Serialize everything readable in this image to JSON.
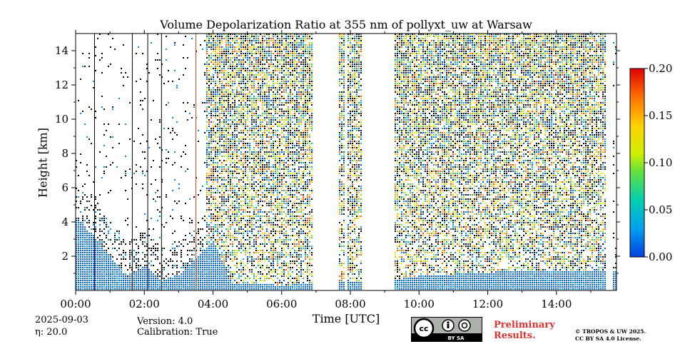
{
  "chart_data": {
    "type": "heatmap",
    "title": "Volume Depolarization Ratio at 355 nm of pollyxt_uw at Warsaw",
    "xlabel": "Time [UTC]",
    "ylabel": "Height [km]",
    "xlim_hours": [
      0,
      15.75
    ],
    "ylim_km": [
      0,
      15
    ],
    "x_ticks": [
      0,
      2,
      4,
      6,
      8,
      10,
      12,
      14
    ],
    "x_tick_labels": [
      "00:00",
      "02:00",
      "04:00",
      "06:00",
      "08:00",
      "10:00",
      "12:00",
      "14:00"
    ],
    "y_ticks": [
      2,
      4,
      6,
      8,
      10,
      12,
      14
    ],
    "y_tick_labels": [
      "2",
      "4",
      "6",
      "8",
      "10",
      "12",
      "14"
    ],
    "colorbar": {
      "min": 0.0,
      "max": 0.2,
      "ticks": [
        0.0,
        0.05,
        0.1,
        0.15,
        0.2
      ],
      "tick_labels": [
        "0.00",
        "0.05",
        "0.10",
        "0.15",
        "0.20"
      ],
      "colormap": [
        "#0050e0",
        "#00b0f0",
        "#00d090",
        "#80e020",
        "#f0f000",
        "#ffb000",
        "#ff5000",
        "#e00000"
      ]
    },
    "no_data_periods_hours": [
      [
        6.9,
        7.65
      ],
      [
        7.8,
        7.9
      ],
      [
        8.3,
        9.28
      ],
      [
        15.45,
        15.6
      ]
    ],
    "noisy_periods_hours": [
      [
        3.8,
        15.45
      ]
    ],
    "boundary_layer_km": [
      {
        "t": 0.0,
        "h": 4.3
      },
      {
        "t": 0.5,
        "h": 3.2
      },
      {
        "t": 1.0,
        "h": 2.0
      },
      {
        "t": 1.5,
        "h": 0.8
      },
      {
        "t": 2.0,
        "h": 1.5
      },
      {
        "t": 2.5,
        "h": 0.6
      },
      {
        "t": 3.0,
        "h": 1.0
      },
      {
        "t": 3.5,
        "h": 2.0
      },
      {
        "t": 4.0,
        "h": 3.0
      },
      {
        "t": 4.5,
        "h": 0.5
      },
      {
        "t": 6.0,
        "h": 0.35
      },
      {
        "t": 9.3,
        "h": 0.7
      },
      {
        "t": 10.0,
        "h": 0.9
      },
      {
        "t": 11.0,
        "h": 1.0
      },
      {
        "t": 12.0,
        "h": 1.1
      },
      {
        "t": 13.0,
        "h": 1.2
      },
      {
        "t": 14.0,
        "h": 1.2
      },
      {
        "t": 15.45,
        "h": 1.2
      }
    ],
    "annotations": {
      "date": "2025-09-03",
      "eta": "η: 20.0",
      "version": "Version: 4.0",
      "calibration": "Calibration: True",
      "preliminary": [
        "Preliminary",
        "Results."
      ],
      "copyright": [
        "© TROPOS & UW 2025.",
        "CC BY SA 4.0 License."
      ],
      "license_badge": "BY SA"
    }
  }
}
